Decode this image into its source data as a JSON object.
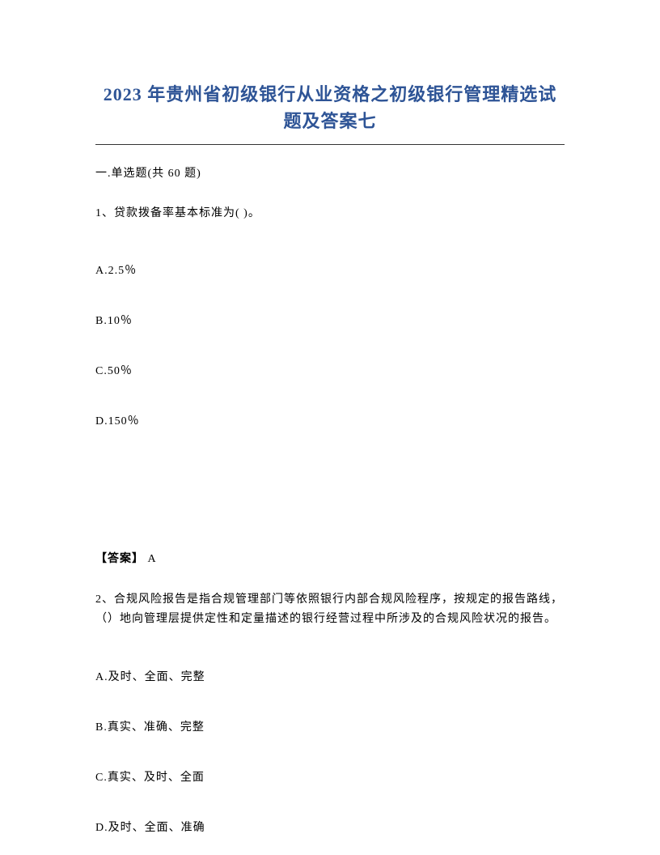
{
  "title": "2023 年贵州省初级银行从业资格之初级银行管理精选试题及答案七",
  "section_header": "一.单选题(共 60 题)",
  "question1": {
    "stem": "1、贷款拨备率基本标准为( )。",
    "options": {
      "a": "A.2.5％",
      "b": "B.10％",
      "c": "C.50％",
      "d": "D.150％"
    },
    "answer_label": "【答案】",
    "answer_value": " A"
  },
  "question2": {
    "stem": "2、合规风险报告是指合规管理部门等依照银行内部合规风险程序，按规定的报告路线，（）地向管理层提供定性和定量描述的银行经营过程中所涉及的合规风险状况的报告。",
    "options": {
      "a": "A.及时、全面、完整",
      "b": "B.真实、准确、完整",
      "c": "C.真实、及时、全面",
      "d": "D.及时、全面、准确"
    }
  }
}
